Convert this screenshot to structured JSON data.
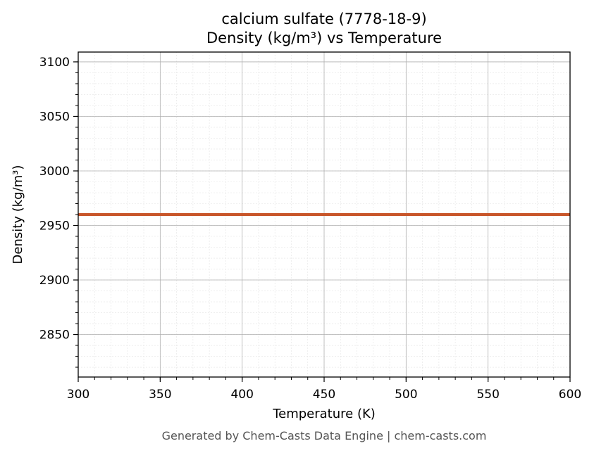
{
  "chart_data": {
    "type": "line",
    "title": [
      "calcium sulfate (7778-18-9)",
      "Density (kg/m³) vs Temperature"
    ],
    "xlabel": "Temperature (K)",
    "ylabel": "Density (kg/m³)",
    "xlim": [
      300,
      600
    ],
    "ylim": [
      2811,
      3109
    ],
    "xticks": [
      300,
      350,
      400,
      450,
      500,
      550,
      600
    ],
    "yticks": [
      2850,
      2900,
      2950,
      3000,
      3050,
      3100
    ],
    "grid": true,
    "minor_grid": true,
    "series": [
      {
        "color": "#c8562a",
        "x": [
          300,
          600
        ],
        "y": [
          2960,
          2960
        ]
      }
    ]
  },
  "footer": "Generated by Chem-Casts Data Engine | chem-casts.com"
}
